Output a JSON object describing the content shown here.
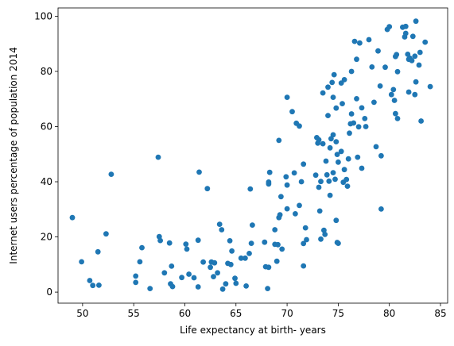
{
  "chart_data": {
    "type": "scatter",
    "xlabel": "Life expectancy at birth- years",
    "ylabel": "Internet users percentage of population 2014",
    "xlim": [
      47.6,
      85.7
    ],
    "ylim": [
      -4.0,
      103.0
    ],
    "xticks": [
      50,
      55,
      60,
      65,
      70,
      75,
      80,
      85
    ],
    "yticks": [
      0,
      20,
      40,
      60,
      80,
      100
    ],
    "xtick_labels": [
      "50",
      "55",
      "60",
      "65",
      "70",
      "75",
      "80",
      "85"
    ],
    "ytick_labels": [
      "0",
      "20",
      "40",
      "60",
      "80",
      "100"
    ],
    "grid": false,
    "marker_color": "#1f77b4",
    "points": [
      [
        49.0,
        27.0
      ],
      [
        49.9,
        11.0
      ],
      [
        50.7,
        4.2
      ],
      [
        51.0,
        2.4
      ],
      [
        51.5,
        14.6
      ],
      [
        51.6,
        2.5
      ],
      [
        52.3,
        21.1
      ],
      [
        52.8,
        42.7
      ],
      [
        55.2,
        5.8
      ],
      [
        55.2,
        3.5
      ],
      [
        55.6,
        11.0
      ],
      [
        55.8,
        16.1
      ],
      [
        56.6,
        1.3
      ],
      [
        57.4,
        48.9
      ],
      [
        57.5,
        20.1
      ],
      [
        57.6,
        18.7
      ],
      [
        58.0,
        7.0
      ],
      [
        58.5,
        17.8
      ],
      [
        58.6,
        3.0
      ],
      [
        58.7,
        9.4
      ],
      [
        58.8,
        2.0
      ],
      [
        59.7,
        5.3
      ],
      [
        60.1,
        17.4
      ],
      [
        60.2,
        15.6
      ],
      [
        60.4,
        6.5
      ],
      [
        60.9,
        5.2
      ],
      [
        61.3,
        18.8
      ],
      [
        61.3,
        1.9
      ],
      [
        61.4,
        43.5
      ],
      [
        61.8,
        10.9
      ],
      [
        62.2,
        37.5
      ],
      [
        62.5,
        9.0
      ],
      [
        62.6,
        10.9
      ],
      [
        62.8,
        5.6
      ],
      [
        62.9,
        10.6
      ],
      [
        63.2,
        7.0
      ],
      [
        63.4,
        24.6
      ],
      [
        63.6,
        22.6
      ],
      [
        63.7,
        1.1
      ],
      [
        64.0,
        3.0
      ],
      [
        64.2,
        10.4
      ],
      [
        64.4,
        18.6
      ],
      [
        64.5,
        10.0
      ],
      [
        64.6,
        14.9
      ],
      [
        64.9,
        5.0
      ],
      [
        65.0,
        3.2
      ],
      [
        65.5,
        12.3
      ],
      [
        65.9,
        12.3
      ],
      [
        66.0,
        2.2
      ],
      [
        66.3,
        14.0
      ],
      [
        66.4,
        37.4
      ],
      [
        66.6,
        24.3
      ],
      [
        66.5,
        17.7
      ],
      [
        67.8,
        18.1
      ],
      [
        67.9,
        9.2
      ],
      [
        68.1,
        1.3
      ],
      [
        68.2,
        9.0
      ],
      [
        68.2,
        39.9
      ],
      [
        68.3,
        43.4
      ],
      [
        68.2,
        39.2
      ],
      [
        68.8,
        22.6
      ],
      [
        68.8,
        17.3
      ],
      [
        69.0,
        11.2
      ],
      [
        69.1,
        17.2
      ],
      [
        69.2,
        27.0
      ],
      [
        69.3,
        28.0
      ],
      [
        69.4,
        34.6
      ],
      [
        69.2,
        55.0
      ],
      [
        69.5,
        15.6
      ],
      [
        69.9,
        41.8
      ],
      [
        70.0,
        70.6
      ],
      [
        70.0,
        38.8
      ],
      [
        70.0,
        30.2
      ],
      [
        70.5,
        65.4
      ],
      [
        70.7,
        43.2
      ],
      [
        70.8,
        28.4
      ],
      [
        70.9,
        61.2
      ],
      [
        71.2,
        31.4
      ],
      [
        71.2,
        60.2
      ],
      [
        71.4,
        40.0
      ],
      [
        71.6,
        17.6
      ],
      [
        71.6,
        46.4
      ],
      [
        71.6,
        9.5
      ],
      [
        71.8,
        23.3
      ],
      [
        71.9,
        19.0
      ],
      [
        72.8,
        42.4
      ],
      [
        72.9,
        56.0
      ],
      [
        73.0,
        54.0
      ],
      [
        73.1,
        55.2
      ],
      [
        73.1,
        38.0
      ],
      [
        73.2,
        29.4
      ],
      [
        73.3,
        40.1
      ],
      [
        73.3,
        19.2
      ],
      [
        73.5,
        72.2
      ],
      [
        73.5,
        53.8
      ],
      [
        73.6,
        22.4
      ],
      [
        73.7,
        20.9
      ],
      [
        73.8,
        47.5
      ],
      [
        73.9,
        42.5
      ],
      [
        74.0,
        64.0
      ],
      [
        74.1,
        40.2
      ],
      [
        74.0,
        74.3
      ],
      [
        74.2,
        52.3
      ],
      [
        74.2,
        35.1
      ],
      [
        74.3,
        55.6
      ],
      [
        74.4,
        76.0
      ],
      [
        74.5,
        57.0
      ],
      [
        74.5,
        43.3
      ],
      [
        74.5,
        70.6
      ],
      [
        74.6,
        78.8
      ],
      [
        74.7,
        40.9
      ],
      [
        74.8,
        26.0
      ],
      [
        74.9,
        18.0
      ],
      [
        75.0,
        17.7
      ],
      [
        74.8,
        54.5
      ],
      [
        74.9,
        49.9
      ],
      [
        74.8,
        66.7
      ],
      [
        75.0,
        47.1
      ],
      [
        75.3,
        75.8
      ],
      [
        75.3,
        51.0
      ],
      [
        75.4,
        68.3
      ],
      [
        75.6,
        77.0
      ],
      [
        75.5,
        39.8
      ],
      [
        75.6,
        44.4
      ],
      [
        75.8,
        40.8
      ],
      [
        75.9,
        38.4
      ],
      [
        76.0,
        48.3
      ],
      [
        76.1,
        57.6
      ],
      [
        76.2,
        61.0
      ],
      [
        76.3,
        80.0
      ],
      [
        76.3,
        64.6
      ],
      [
        76.5,
        61.3
      ],
      [
        76.6,
        90.9
      ],
      [
        76.8,
        70.1
      ],
      [
        76.8,
        84.4
      ],
      [
        76.9,
        48.9
      ],
      [
        77.0,
        59.9
      ],
      [
        77.1,
        90.3
      ],
      [
        77.3,
        44.9
      ],
      [
        77.3,
        66.8
      ],
      [
        77.6,
        62.9
      ],
      [
        77.7,
        60.0
      ],
      [
        78.0,
        91.5
      ],
      [
        78.3,
        81.6
      ],
      [
        78.5,
        68.8
      ],
      [
        78.7,
        52.7
      ],
      [
        78.9,
        87.4
      ],
      [
        79.1,
        74.7
      ],
      [
        79.2,
        49.4
      ],
      [
        79.2,
        30.1
      ],
      [
        79.6,
        81.5
      ],
      [
        79.8,
        95.2
      ],
      [
        80.0,
        96.2
      ],
      [
        80.2,
        71.6
      ],
      [
        80.4,
        73.4
      ],
      [
        80.5,
        69.5
      ],
      [
        80.6,
        85.4
      ],
      [
        80.7,
        86.1
      ],
      [
        80.8,
        62.9
      ],
      [
        80.6,
        64.7
      ],
      [
        80.8,
        79.9
      ],
      [
        81.3,
        96.0
      ],
      [
        81.5,
        92.5
      ],
      [
        81.6,
        96.3
      ],
      [
        81.6,
        93.8
      ],
      [
        81.8,
        86.2
      ],
      [
        81.9,
        72.5
      ],
      [
        81.9,
        84.4
      ],
      [
        82.0,
        84.8
      ],
      [
        82.3,
        92.7
      ],
      [
        82.2,
        83.9
      ],
      [
        82.5,
        71.6
      ],
      [
        82.5,
        85.5
      ],
      [
        82.6,
        76.2
      ],
      [
        82.6,
        98.2
      ],
      [
        82.9,
        82.3
      ],
      [
        83.0,
        86.9
      ],
      [
        83.1,
        62.0
      ],
      [
        83.5,
        90.6
      ],
      [
        84.0,
        74.5
      ]
    ]
  }
}
